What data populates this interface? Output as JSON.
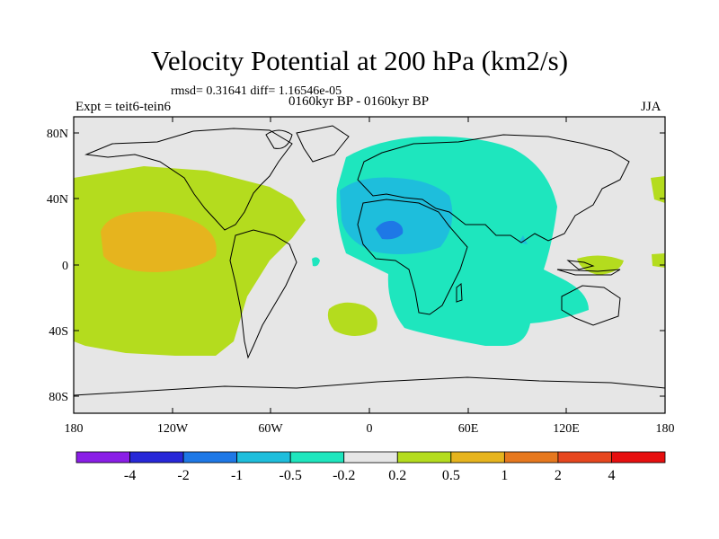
{
  "title": "Velocity Potential at 200 hPa (km2/s)",
  "stats": "rmsd= 0.31641 diff= 1.16546e-05",
  "period": "0160kyr BP - 0160kyr BP",
  "experiment": "Expt = teit6-tein6",
  "season": "JJA",
  "map": {
    "background_color": "#e6e6e6",
    "lat_labels": [
      "80N",
      "40N",
      "0",
      "40S",
      "80S"
    ],
    "lon_labels": [
      "180",
      "120W",
      "60W",
      "0",
      "60E",
      "120E",
      "180"
    ]
  },
  "colorbar": {
    "labels": [
      "-4",
      "-2",
      "-1",
      "-0.5",
      "-0.2",
      "0.2",
      "0.5",
      "1",
      "2",
      "4"
    ],
    "colors": [
      "#8a1ee6",
      "#2828d8",
      "#1e78e6",
      "#1ebedc",
      "#1ee6be",
      "#e6e6e6",
      "#b4dc1e",
      "#e6b41e",
      "#e6781e",
      "#e6461e",
      "#e60f0f"
    ]
  },
  "regions": [
    {
      "name": "pacific-positive",
      "level": "0.2"
    },
    {
      "name": "pacific-core",
      "level": "0.5"
    },
    {
      "name": "africa-asia-negative",
      "level": "-0.2"
    },
    {
      "name": "eurasia-core",
      "level": "-0.5"
    },
    {
      "name": "north-africa-core",
      "level": "-1"
    },
    {
      "name": "south-atlantic-positive",
      "level": "0.2"
    },
    {
      "name": "west-pacific-positive",
      "level": "0.2"
    }
  ]
}
